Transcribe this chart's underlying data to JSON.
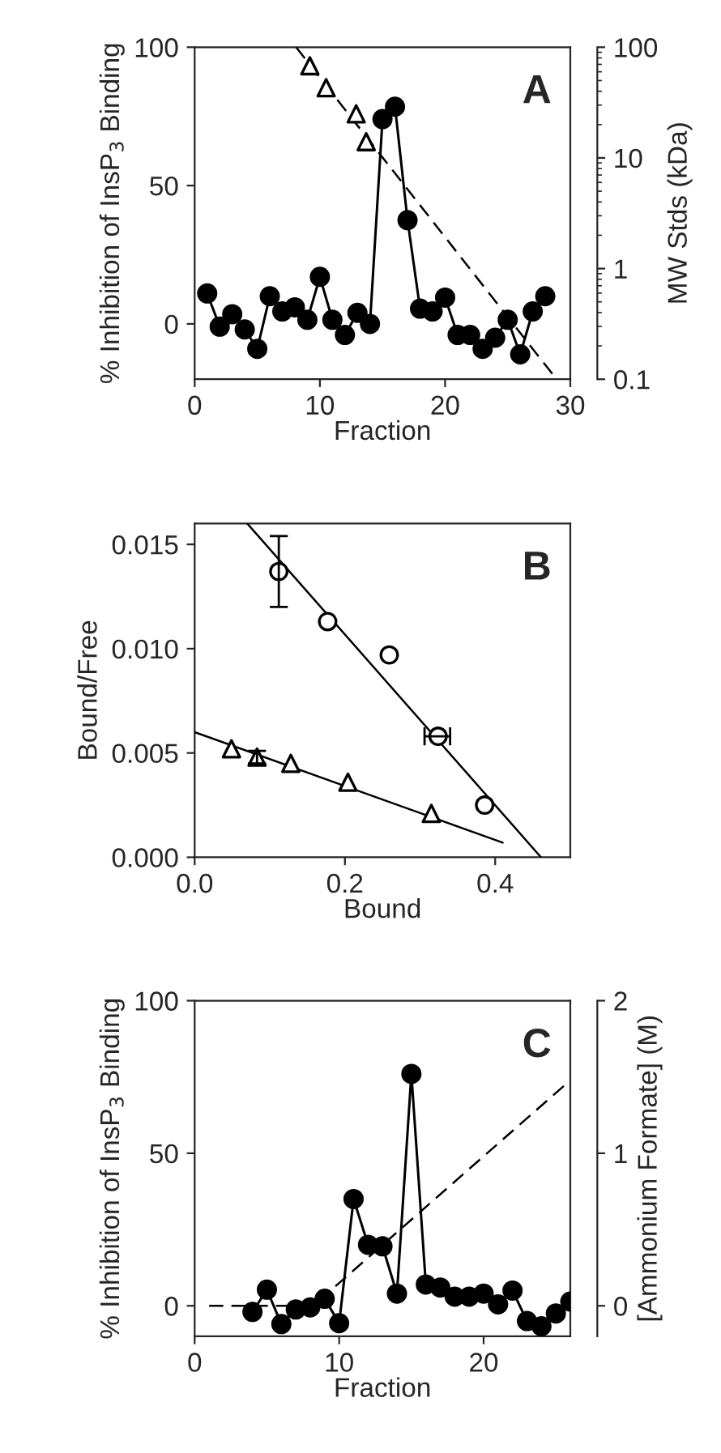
{
  "chart_data": [
    {
      "type": "line",
      "xlabel": "Fraction",
      "ylabel": "% Inhibition of InsP$_{3}$ Binding",
      "y2label": "MW Stds (kDa)",
      "annotations": [
        "A"
      ],
      "xlim": [
        0,
        30
      ],
      "xticks": [
        0,
        10,
        20,
        30
      ],
      "ylim": [
        -20,
        100
      ],
      "yticks": [
        0,
        50,
        100
      ],
      "y2lim": [
        0.1,
        100
      ],
      "y2ticks": [
        0.1,
        1,
        10,
        100
      ],
      "log": "y2",
      "grid": false,
      "legend": false,
      "series": [
        {
          "color": "#000000",
          "marker": "circle",
          "line_style": "solid",
          "x": [
            1,
            2,
            3,
            4,
            5,
            6,
            7,
            8,
            9,
            10,
            11,
            12,
            13,
            14,
            15,
            16,
            17,
            18,
            19,
            20,
            21,
            22,
            23,
            24,
            25,
            26,
            27,
            28
          ],
          "values": [
            11,
            -1,
            3.5,
            -2,
            -9,
            10,
            4.5,
            6,
            1.5,
            17,
            1.5,
            -4,
            4,
            0,
            74,
            78.5,
            37.5,
            5.5,
            4.5,
            9.5,
            -4,
            -4,
            -9,
            -5,
            1.5,
            -11,
            4.5,
            10
          ]
        },
        {
          "type": "scatter",
          "axis": "y2",
          "color": "#000000",
          "marker": "triangle",
          "x": [
            9.2,
            10.5,
            12.9,
            13.7
          ],
          "values": [
            68,
            43,
            25,
            14
          ]
        },
        {
          "type": "line",
          "axis": "y2",
          "color": "#000000",
          "marker": "none",
          "line_style": "dashed",
          "x": [
            8.1,
            28.9
          ],
          "values": [
            100,
            0.1
          ]
        }
      ]
    },
    {
      "type": "scatter",
      "xlabel": "Bound",
      "ylabel": "Bound/Free",
      "annotations": [
        "B"
      ],
      "xlim": [
        0,
        0.5
      ],
      "xticks": [
        {
          "value": 0,
          "label": "0.0"
        },
        {
          "value": 0.2,
          "label": "0.2"
        },
        {
          "value": 0.4,
          "label": "0.4"
        }
      ],
      "ylim": [
        0,
        0.016
      ],
      "yticks": [
        {
          "value": 0,
          "label": "0.000"
        },
        {
          "value": 0.005,
          "label": "0.005"
        },
        {
          "value": 0.01,
          "label": "0.010"
        },
        {
          "value": 0.015,
          "label": "0.015"
        }
      ],
      "grid": false,
      "legend": false,
      "series": [
        {
          "color": "#000000",
          "marker": "circle",
          "x": [
            0.112,
            0.177,
            0.259,
            0.324,
            0.386
          ],
          "values": [
            0.0137,
            0.0113,
            0.0097,
            0.0058,
            0.0025
          ],
          "errors": [
            [
              0.012,
              0.0154
            ],
            null,
            null,
            null,
            null
          ],
          "xerrors": [
            null,
            null,
            null,
            [
              0.306,
              0.34
            ],
            null
          ]
        },
        {
          "color": "#000000",
          "marker": "triangle",
          "x": [
            0.049,
            0.083,
            0.128,
            0.204,
            0.315
          ],
          "values": [
            0.0052,
            0.0048,
            0.0045,
            0.0036,
            0.0021
          ],
          "errors": [
            null,
            [
              0.0045,
              0.0051
            ],
            null,
            null,
            null
          ]
        },
        {
          "type": "line",
          "color": "#000000",
          "marker": "none",
          "line_style": "solid",
          "x": [
            0.07,
            0.461
          ],
          "values": [
            0.016,
            0
          ]
        },
        {
          "type": "line",
          "color": "#000000",
          "marker": "none",
          "line_style": "solid",
          "x": [
            0,
            0.41
          ],
          "values": [
            0.006,
            0.0007
          ]
        }
      ]
    },
    {
      "type": "line",
      "xlabel": "Fraction",
      "ylabel": "% Inhibition of InsP$_{3}$ Binding",
      "y2label": "[Ammonium Formate] (M)",
      "annotations": [
        "C"
      ],
      "xlim": [
        0,
        26
      ],
      "xticks": [
        0,
        10,
        20
      ],
      "ylim": [
        -10,
        100
      ],
      "yticks": [
        0,
        50,
        100
      ],
      "y2lim": [
        -0.2,
        2
      ],
      "y2ticks": [
        0,
        1,
        2
      ],
      "grid": false,
      "legend": false,
      "series": [
        {
          "color": "#000000",
          "marker": "circle",
          "line_style": "solid",
          "x": [
            4,
            5,
            6,
            7,
            8,
            9,
            10,
            11,
            12,
            13,
            14,
            15,
            16,
            17,
            18,
            19,
            20,
            21,
            22,
            23,
            24,
            25,
            26
          ],
          "values": [
            -2,
            5.3,
            -6,
            -1.2,
            -0.5,
            2.3,
            -5.7,
            35,
            20,
            19.5,
            4,
            76,
            7,
            6,
            3,
            3,
            4,
            0.5,
            5,
            -5,
            -6.7,
            -2.5,
            1.4
          ]
        },
        {
          "type": "line",
          "axis": "y2",
          "color": "#000000",
          "marker": "none",
          "line_style": "dashed",
          "x": [
            1,
            8.2,
            25.9
          ],
          "values": [
            0,
            0,
            1.47
          ]
        }
      ]
    }
  ]
}
